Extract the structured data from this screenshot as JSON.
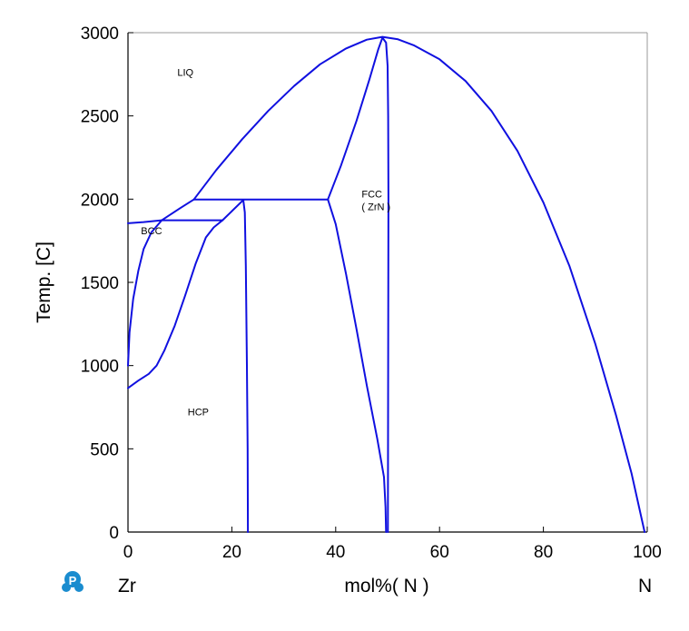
{
  "chart_data": {
    "type": "line",
    "ylabel": "Temp.  [C]",
    "xlabel": "mol%(  N  )",
    "x_left_label": "Zr",
    "x_right_label": "N",
    "xlim": [
      0,
      100
    ],
    "ylim": [
      0,
      3000
    ],
    "x_ticks": [
      "0",
      "20",
      "40",
      "60",
      "80",
      "100"
    ],
    "y_ticks": [
      "0",
      "500",
      "1000",
      "1500",
      "2000",
      "2500",
      "3000"
    ],
    "grid": false,
    "line_color": "#1010e0",
    "logo_color": "#1a8ccf",
    "region_labels": [
      {
        "text": "LIQ",
        "x": 9.5,
        "y": 2740
      },
      {
        "text": "BCC",
        "x": 2.5,
        "y": 1790
      },
      {
        "text": "FCC",
        "x": 45,
        "y": 2010
      },
      {
        "text": "( ZrN )",
        "x": 45,
        "y": 1935
      },
      {
        "text": "HCP",
        "x": 11.5,
        "y": 700
      }
    ],
    "series": [
      {
        "values": [
          [
            0,
            1855
          ],
          [
            3,
            1862
          ],
          [
            6.5,
            1873
          ]
        ]
      },
      {
        "values": [
          [
            6.5,
            1873
          ],
          [
            10,
            1945
          ],
          [
            12.7,
            1998
          ]
        ]
      },
      {
        "values": [
          [
            12.7,
            1998
          ],
          [
            17,
            2175
          ],
          [
            22,
            2360
          ],
          [
            27,
            2530
          ],
          [
            32,
            2680
          ],
          [
            37,
            2810
          ],
          [
            42,
            2905
          ],
          [
            46,
            2958
          ],
          [
            49,
            2975
          ],
          [
            52,
            2960
          ],
          [
            55,
            2925
          ],
          [
            60,
            2840
          ],
          [
            65,
            2710
          ],
          [
            70,
            2530
          ],
          [
            75,
            2290
          ],
          [
            80,
            1980
          ],
          [
            85,
            1600
          ],
          [
            90,
            1130
          ],
          [
            94,
            700
          ],
          [
            97,
            350
          ],
          [
            99.5,
            0
          ]
        ]
      },
      {
        "values": [
          [
            12.7,
            1998
          ],
          [
            38.5,
            1998
          ]
        ]
      },
      {
        "values": [
          [
            38.5,
            1998
          ],
          [
            41,
            2200
          ],
          [
            44,
            2470
          ],
          [
            46.5,
            2720
          ],
          [
            48.2,
            2900
          ],
          [
            49,
            2970
          ]
        ]
      },
      {
        "values": [
          [
            49,
            2970
          ],
          [
            49.7,
            2940
          ],
          [
            50,
            2800
          ],
          [
            50.1,
            2500
          ],
          [
            50.15,
            2000
          ],
          [
            50.1,
            1000
          ],
          [
            50.05,
            0
          ]
        ]
      },
      {
        "values": [
          [
            38.5,
            1998
          ],
          [
            40,
            1850
          ],
          [
            42,
            1550
          ],
          [
            44,
            1220
          ],
          [
            46,
            880
          ],
          [
            48,
            560
          ],
          [
            49.3,
            330
          ],
          [
            49.6,
            150
          ],
          [
            49.7,
            0
          ]
        ]
      },
      {
        "values": [
          [
            0,
            1000
          ],
          [
            0.3,
            1200
          ],
          [
            1,
            1400
          ],
          [
            2,
            1570
          ],
          [
            3,
            1700
          ],
          [
            4.5,
            1800
          ],
          [
            6.5,
            1873
          ]
        ]
      },
      {
        "values": [
          [
            6.5,
            1873
          ],
          [
            18.2,
            1873
          ]
        ]
      },
      {
        "values": [
          [
            18.2,
            1873
          ],
          [
            22.2,
            1995
          ]
        ]
      },
      {
        "values": [
          [
            22.2,
            1995
          ],
          [
            22.5,
            1920
          ],
          [
            22.7,
            1600
          ],
          [
            22.9,
            1000
          ],
          [
            23.05,
            500
          ],
          [
            23.1,
            0
          ]
        ]
      },
      {
        "values": [
          [
            0,
            865
          ],
          [
            2,
            910
          ],
          [
            4,
            950
          ],
          [
            5.5,
            1000
          ],
          [
            7,
            1090
          ],
          [
            9,
            1240
          ],
          [
            11,
            1420
          ],
          [
            13,
            1610
          ],
          [
            15,
            1770
          ],
          [
            16.5,
            1830
          ],
          [
            18.2,
            1873
          ]
        ]
      }
    ]
  },
  "logo": {
    "letter": "P"
  }
}
